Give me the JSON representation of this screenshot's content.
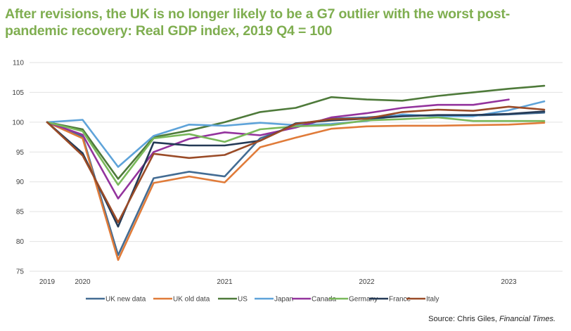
{
  "chart_data": {
    "type": "line",
    "title": "After revisions, the UK is no longer likely to be a G7 outlier with the worst post-pandemic recovery: Real GDP index, 2019 Q4 = 100",
    "title_lines": [
      "After revisions, the UK is no longer likely to be a G7 outlier with the worst post-",
      "pandemic recovery: Real GDP index, 2019 Q4 = 100"
    ],
    "xlabel": "",
    "ylabel": "",
    "ylim": [
      75,
      110
    ],
    "yticks": [
      110,
      105,
      100,
      95,
      90,
      85,
      80,
      75
    ],
    "x": [
      "2019Q4",
      "2020Q1",
      "2020Q2",
      "2020Q3",
      "2020Q4",
      "2021Q1",
      "2021Q2",
      "2021Q3",
      "2021Q4",
      "2022Q1",
      "2022Q2",
      "2022Q3",
      "2022Q4",
      "2023Q1",
      "2023Q2"
    ],
    "xtick_labels": [
      {
        "label": "2019",
        "at": "2019Q4"
      },
      {
        "label": "2020",
        "at": "2020Q1"
      },
      {
        "label": "2021",
        "at": "2021Q1"
      },
      {
        "label": "2022",
        "at": "2022Q1"
      },
      {
        "label": "2023",
        "at": "2023Q1"
      }
    ],
    "grid": true,
    "legend_position": "bottom",
    "series": [
      {
        "name": "UK new data",
        "color": "#436c93",
        "values": [
          100,
          97.6,
          77.7,
          90.6,
          91.7,
          90.9,
          97.3,
          99.5,
          100.6,
          100.8,
          101.2,
          101.1,
          101.1,
          101.3,
          101.6
        ]
      },
      {
        "name": "UK old data",
        "color": "#e07b39",
        "values": [
          100,
          97.3,
          76.9,
          89.8,
          90.9,
          89.9,
          95.8,
          97.4,
          98.9,
          99.3,
          99.4,
          99.4,
          99.5,
          99.6,
          99.9
        ]
      },
      {
        "name": "US",
        "color": "#4e7a3a",
        "values": [
          100,
          98.8,
          90.5,
          97.5,
          98.6,
          100.0,
          101.7,
          102.4,
          104.2,
          103.8,
          103.6,
          104.4,
          105.0,
          105.6,
          106.1
        ]
      },
      {
        "name": "Japan",
        "color": "#5ea3d9",
        "values": [
          100,
          100.4,
          92.5,
          97.7,
          99.6,
          99.4,
          99.9,
          99.5,
          99.7,
          100.2,
          101.3,
          101.0,
          101.0,
          102.0,
          103.5
        ]
      },
      {
        "name": "Canada",
        "color": "#93339d",
        "values": [
          100,
          97.9,
          87.2,
          95.0,
          97.2,
          98.3,
          97.8,
          99.1,
          100.8,
          101.5,
          102.4,
          102.9,
          102.9,
          103.8,
          null
        ]
      },
      {
        "name": "Germany",
        "color": "#79b85a",
        "values": [
          100,
          98.5,
          89.5,
          97.3,
          98.0,
          96.7,
          98.8,
          99.3,
          99.5,
          100.3,
          100.5,
          100.8,
          100.2,
          100.2,
          100.2
        ]
      },
      {
        "name": "France",
        "color": "#243a56",
        "values": [
          100,
          94.8,
          82.5,
          96.6,
          96.1,
          96.1,
          96.9,
          99.8,
          100.3,
          100.6,
          101.0,
          101.2,
          101.2,
          101.4,
          101.8
        ]
      },
      {
        "name": "Italy",
        "color": "#9a4b27",
        "values": [
          100,
          94.4,
          83.2,
          94.7,
          94.0,
          94.5,
          96.9,
          99.7,
          100.5,
          100.6,
          101.7,
          102.1,
          101.9,
          102.6,
          102.1
        ]
      }
    ],
    "source_prefix": "Source: Chris Giles, ",
    "source_publication": "Financial Times."
  }
}
